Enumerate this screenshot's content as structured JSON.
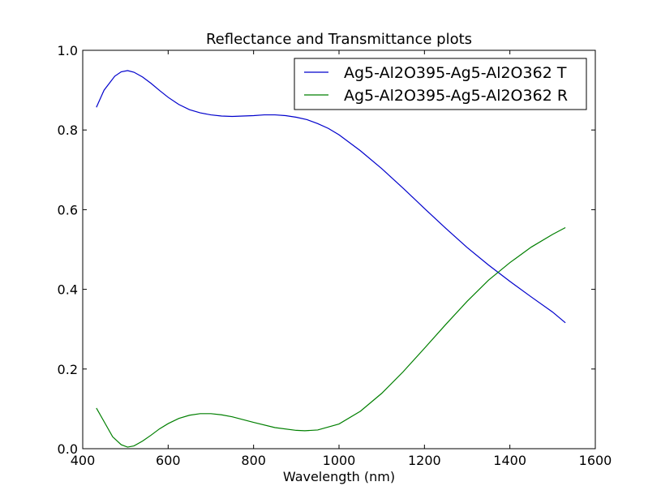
{
  "chart_data": {
    "type": "line",
    "title": "Reflectance and Transmittance plots",
    "xlabel": "Wavelength (nm)",
    "ylabel": "",
    "xlim": [
      400,
      1600
    ],
    "ylim": [
      0.0,
      1.0
    ],
    "xticks": [
      "400",
      "600",
      "800",
      "1000",
      "1200",
      "1400",
      "1600"
    ],
    "yticks": [
      "0.0",
      "0.2",
      "0.4",
      "0.6",
      "0.8",
      "1.0"
    ],
    "grid": false,
    "legend": "top-right",
    "series": [
      {
        "name": "Ag5-Al2O395-Ag5-Al2O362 T",
        "color": "#0000cc",
        "x": [
          432,
          450,
          475,
          490,
          505,
          520,
          540,
          560,
          580,
          600,
          625,
          650,
          675,
          700,
          725,
          750,
          775,
          800,
          825,
          850,
          875,
          900,
          925,
          950,
          975,
          1000,
          1050,
          1100,
          1150,
          1200,
          1250,
          1300,
          1350,
          1400,
          1450,
          1500,
          1530
        ],
        "y": [
          0.857,
          0.9,
          0.935,
          0.946,
          0.949,
          0.945,
          0.933,
          0.917,
          0.899,
          0.882,
          0.864,
          0.851,
          0.843,
          0.838,
          0.835,
          0.834,
          0.835,
          0.836,
          0.838,
          0.838,
          0.836,
          0.832,
          0.826,
          0.816,
          0.804,
          0.788,
          0.748,
          0.703,
          0.654,
          0.603,
          0.553,
          0.505,
          0.461,
          0.42,
          0.381,
          0.343,
          0.316
        ]
      },
      {
        "name": "Ag5-Al2O395-Ag5-Al2O362 R",
        "color": "#007f00",
        "x": [
          432,
          450,
          470,
          490,
          505,
          520,
          540,
          560,
          580,
          600,
          625,
          650,
          675,
          700,
          725,
          750,
          800,
          850,
          900,
          920,
          950,
          1000,
          1050,
          1100,
          1150,
          1200,
          1250,
          1300,
          1350,
          1400,
          1450,
          1500,
          1530
        ],
        "y": [
          0.102,
          0.068,
          0.03,
          0.01,
          0.004,
          0.007,
          0.019,
          0.034,
          0.05,
          0.063,
          0.076,
          0.084,
          0.088,
          0.088,
          0.085,
          0.08,
          0.066,
          0.053,
          0.046,
          0.045,
          0.047,
          0.062,
          0.094,
          0.139,
          0.193,
          0.252,
          0.312,
          0.37,
          0.423,
          0.467,
          0.506,
          0.538,
          0.555
        ]
      }
    ]
  }
}
